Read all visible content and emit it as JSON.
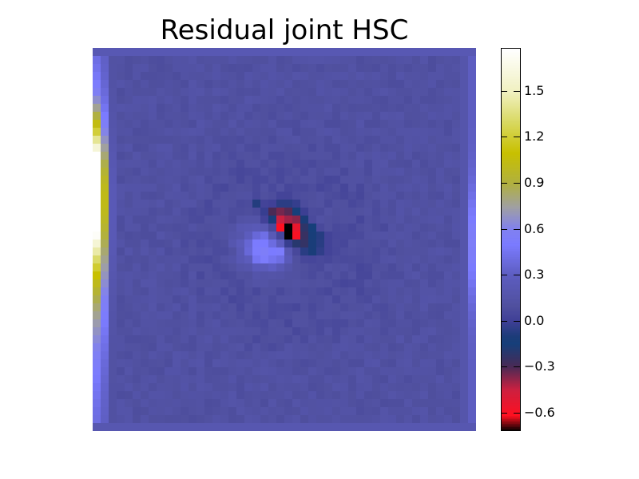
{
  "chart_data": {
    "type": "heatmap",
    "title": "Residual joint HSC",
    "colorbar": {
      "min": -0.72,
      "max": 1.78,
      "ticks": [
        -0.6,
        -0.3,
        0.0,
        0.3,
        0.6,
        0.9,
        1.2,
        1.5
      ],
      "tick_labels": [
        "−0.6",
        "−0.3",
        "0.0",
        "0.3",
        "0.6",
        "0.9",
        "1.2",
        "1.5"
      ],
      "colors": [
        [
          -0.72,
          "#000000"
        ],
        [
          -0.62,
          "#ff1020"
        ],
        [
          -0.45,
          "#cc2040"
        ],
        [
          -0.3,
          "#4a2a55"
        ],
        [
          -0.15,
          "#163f7a"
        ],
        [
          -0.1,
          "#1c3c78"
        ],
        [
          0.0,
          "#3f3f96"
        ],
        [
          0.1,
          "#50509f"
        ],
        [
          0.3,
          "#5d5dc0"
        ],
        [
          0.5,
          "#7b7bff"
        ],
        [
          0.6,
          "#8080f0"
        ],
        [
          0.75,
          "#a0a0a0"
        ],
        [
          0.9,
          "#b0b040"
        ],
        [
          1.1,
          "#c8c000"
        ],
        [
          1.3,
          "#d8d860"
        ],
        [
          1.5,
          "#f0f0c0"
        ],
        [
          1.78,
          "#ffffff"
        ]
      ]
    },
    "grid_size": [
      48,
      48
    ],
    "background_value": 0.12,
    "features": [
      {
        "kind": "left-edge-bright-band",
        "peak_value": 1.78,
        "rows": [
          12,
          32
        ]
      },
      {
        "kind": "central-dipole-negative",
        "min_value": -0.72,
        "center": [
          24,
          23
        ]
      },
      {
        "kind": "central-dipole-positive",
        "max_value": 0.55,
        "center": [
          25,
          21
        ]
      }
    ]
  }
}
